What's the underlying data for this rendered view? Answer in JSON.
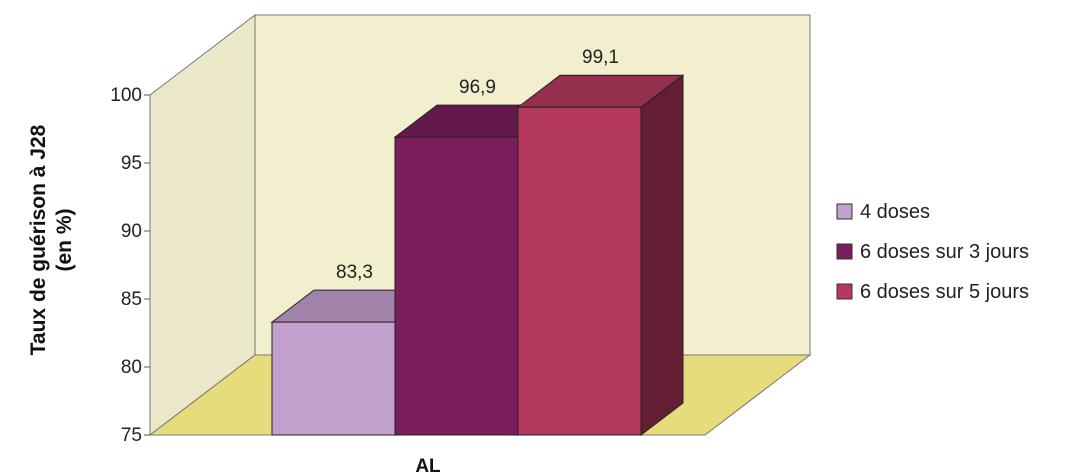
{
  "chart_data": {
    "type": "bar",
    "style": "3d-clustered-column",
    "categories": [
      "AL"
    ],
    "series": [
      {
        "name": "4 doses",
        "values": [
          83.3
        ],
        "label": "83,3",
        "color": "#c4a0cf"
      },
      {
        "name": "6 doses sur 3 jours",
        "values": [
          96.9
        ],
        "label": "96,9",
        "color": "#7a1e5d"
      },
      {
        "name": "6 doses sur 5 jours",
        "values": [
          99.1
        ],
        "label": "99,1",
        "color": "#b5395f"
      }
    ],
    "xlabel": "AL",
    "ylabel_lines": [
      "Taux de guérison à J28",
      "(en %)"
    ],
    "ylim": [
      75,
      100
    ],
    "yticks": [
      "75",
      "80",
      "85",
      "90",
      "95",
      "100"
    ],
    "legend_position": "right",
    "wall_color": "#f2efcf",
    "floor_color": "#e6dc7c",
    "grid": false
  }
}
